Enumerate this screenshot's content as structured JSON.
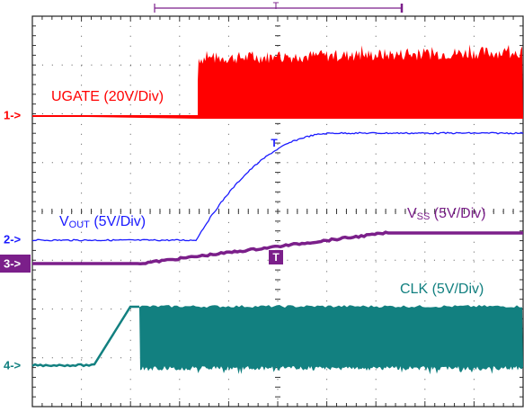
{
  "traces": {
    "ugate": {
      "label": "UGATE (20V/Div)"
    },
    "vout": {
      "symbol": "V",
      "subscript": "OUT",
      "scale": " (5V/Div)"
    },
    "vss": {
      "symbol": "V",
      "subscript": "SS",
      "scale": " (5V/Div)"
    },
    "clk": {
      "label": "CLK (5V/Div)"
    }
  },
  "channels": [
    "1->",
    "2->",
    "3->",
    "4->"
  ],
  "trigger": "T"
}
